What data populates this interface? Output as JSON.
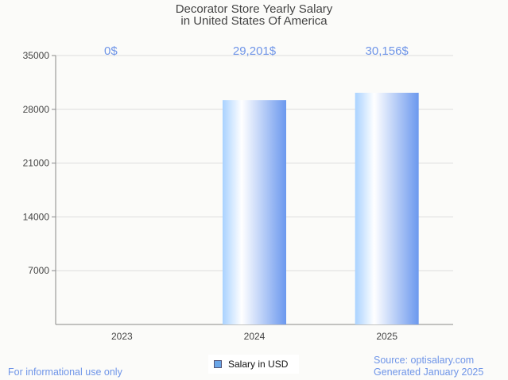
{
  "chart_data": {
    "type": "bar",
    "title": "Decorator Store Yearly Salary",
    "subtitle": "in United States Of America",
    "categories": [
      "2023",
      "2024",
      "2025"
    ],
    "values": [
      0,
      29201,
      30156
    ],
    "data_labels": [
      "0$",
      "29,201$",
      "30,156$"
    ],
    "xlabel": "",
    "ylabel": "",
    "ylim": [
      0,
      35000
    ],
    "yticks": [
      "7000",
      "14000",
      "21000",
      "28000",
      "35000"
    ],
    "grid": true,
    "legend": {
      "label": "Salary in USD",
      "placement": "bottom-center"
    },
    "colors": {
      "bar_light": "#a9d2ff",
      "bar_mid": "#ffffff",
      "bar_dark": "#6b98ee",
      "label": "#6f95e8"
    }
  },
  "footer": {
    "left": "For informational use only",
    "source": "Source: optisalary.com",
    "generated": "Generated January 2025"
  }
}
